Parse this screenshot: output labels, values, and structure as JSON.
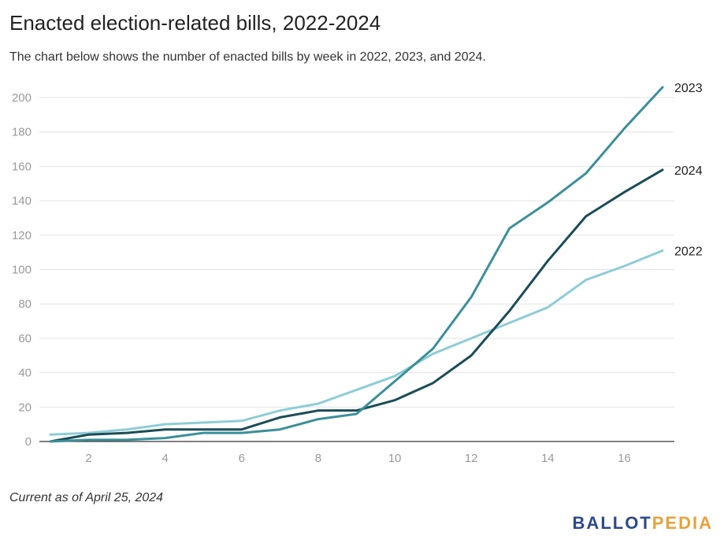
{
  "header": {
    "title": "Enacted election-related bills, 2022-2024",
    "subtitle": "The chart below shows the number of enacted bills by week in 2022, 2023, and 2024."
  },
  "footer": {
    "note": "Current as of April 25, 2024",
    "logo_part1": "BALLOT",
    "logo_part2": "PEDIA"
  },
  "chart_data": {
    "type": "line",
    "title": "Enacted election-related bills, 2022-2024",
    "subtitle": "The chart below shows the number of enacted bills by week in 2022, 2023, and 2024.",
    "xlabel": "",
    "ylabel": "",
    "xlim": [
      1,
      17
    ],
    "ylim": [
      0,
      200
    ],
    "x_ticks": [
      2,
      4,
      6,
      8,
      10,
      12,
      14,
      16
    ],
    "y_ticks": [
      0,
      20,
      40,
      60,
      80,
      100,
      120,
      140,
      160,
      180,
      200
    ],
    "grid": true,
    "legend": "end-of-line labels",
    "x": [
      1,
      2,
      3,
      4,
      5,
      6,
      7,
      8,
      9,
      10,
      11,
      12,
      13,
      14,
      15,
      16,
      17
    ],
    "series": [
      {
        "name": "2022",
        "color": "#8ecdd6",
        "values": [
          4,
          5,
          7,
          10,
          11,
          12,
          18,
          22,
          30,
          38,
          51,
          60,
          69,
          78,
          94,
          102,
          111
        ]
      },
      {
        "name": "2023",
        "color": "#3b8f99",
        "values": [
          0,
          1,
          1,
          2,
          5,
          5,
          7,
          13,
          16,
          35,
          54,
          84,
          124,
          139,
          156,
          182,
          206
        ]
      },
      {
        "name": "2024",
        "color": "#1a4d57",
        "values": [
          0,
          4,
          5,
          7,
          7,
          7,
          14,
          18,
          18,
          24,
          34,
          50,
          76,
          105,
          131,
          145,
          158
        ]
      }
    ]
  }
}
